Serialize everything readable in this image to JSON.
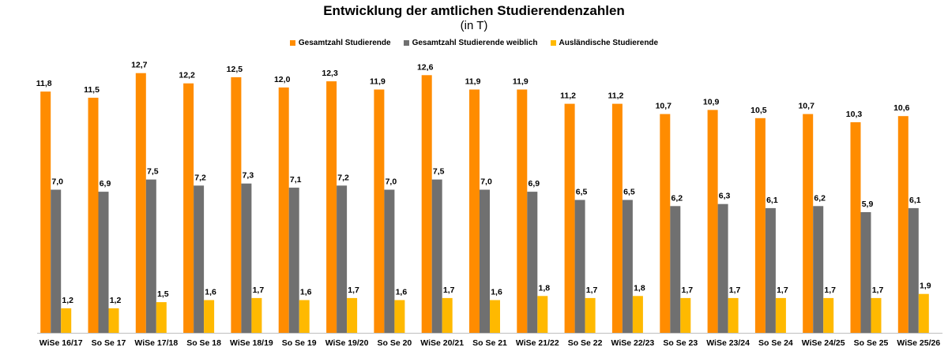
{
  "chart_data": {
    "type": "bar",
    "title": "Entwicklung der amtlichen Studierendenzahlen",
    "subtitle": "(in T)",
    "legend_position": "top",
    "grid": false,
    "ylim": [
      0,
      13.5
    ],
    "categories": [
      "WiSe 16/17",
      "So Se 17",
      "WiSe 17/18",
      "So Se 18",
      "WiSe 18/19",
      "So Se 19",
      "WiSe 19/20",
      "So Se 20",
      "WiSe 20/21",
      "So Se 21",
      "WiSe 21/22",
      "So Se 22",
      "WiSe 22/23",
      "So Se 23",
      "WiSe 23/24",
      "So Se 24",
      "WiSe 24/25",
      "So Se 25",
      "WiSe 25/26"
    ],
    "series": [
      {
        "name": "Gesamtzahl Studierende",
        "color": "#FF8C00",
        "values": [
          11.8,
          11.5,
          12.7,
          12.2,
          12.5,
          12.0,
          12.3,
          11.9,
          12.6,
          11.9,
          11.9,
          11.2,
          11.2,
          10.7,
          10.9,
          10.5,
          10.7,
          10.3,
          10.6
        ],
        "labels": [
          "11,8",
          "11,5",
          "12,7",
          "12,2",
          "12,5",
          "12,0",
          "12,3",
          "11,9",
          "12,6",
          "11,9",
          "11,9",
          "11,2",
          "11,2",
          "10,7",
          "10,9",
          "10,5",
          "10,7",
          "10,3",
          "10,6"
        ]
      },
      {
        "name": "Gesamtzahl Studierende weiblich",
        "color": "#707070",
        "values": [
          7.0,
          6.9,
          7.5,
          7.2,
          7.3,
          7.1,
          7.2,
          7.0,
          7.5,
          7.0,
          6.9,
          6.5,
          6.5,
          6.2,
          6.3,
          6.1,
          6.2,
          5.9,
          6.1
        ],
        "labels": [
          "7,0",
          "6,9",
          "7,5",
          "7,2",
          "7,3",
          "7,1",
          "7,2",
          "7,0",
          "7,5",
          "7,0",
          "6,9",
          "6,5",
          "6,5",
          "6,2",
          "6,3",
          "6,1",
          "6,2",
          "5,9",
          "6,1"
        ]
      },
      {
        "name": "Ausländische Studierende",
        "color": "#FFB900",
        "values": [
          1.2,
          1.2,
          1.5,
          1.6,
          1.7,
          1.6,
          1.7,
          1.6,
          1.7,
          1.6,
          1.8,
          1.7,
          1.8,
          1.7,
          1.7,
          1.7,
          1.7,
          1.7,
          1.9
        ],
        "labels": [
          "1,2",
          "1,2",
          "1,5",
          "1,6",
          "1,7",
          "1,6",
          "1,7",
          "1,6",
          "1,7",
          "1,6",
          "1,8",
          "1,7",
          "1,8",
          "1,7",
          "1,7",
          "1,7",
          "1,7",
          "1,7",
          "1,9"
        ]
      }
    ]
  }
}
